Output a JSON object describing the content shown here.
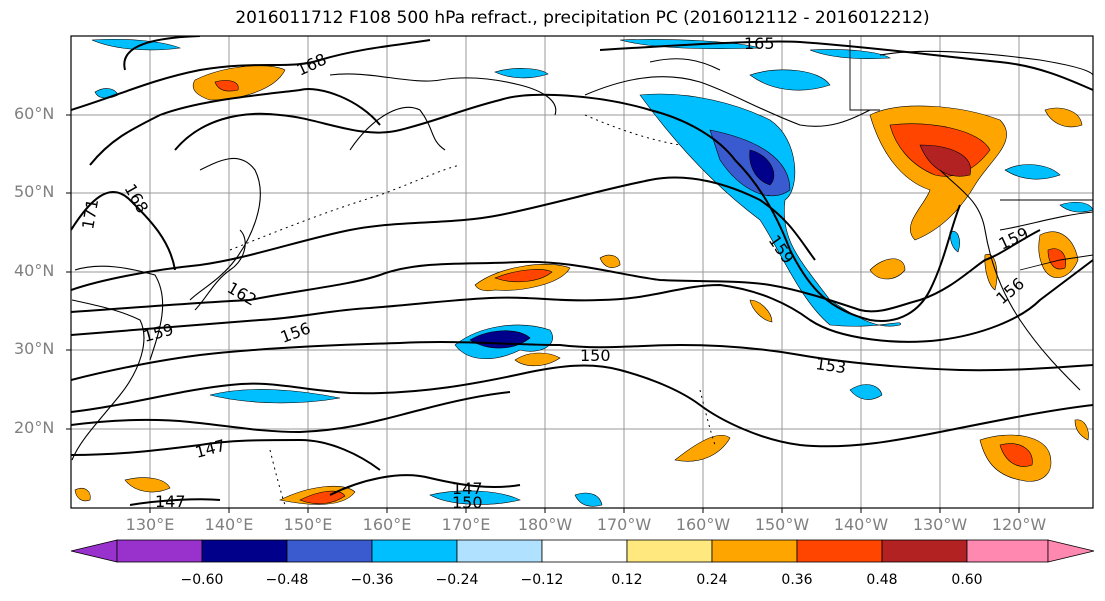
{
  "title": "2016011712 F108 500 hPa refract., precipitation PC (2016012112 - 2016012212)",
  "lat_labels": [
    "60°N",
    "50°N",
    "40°N",
    "30°N",
    "20°N"
  ],
  "lon_labels": [
    "130°E",
    "140°E",
    "150°E",
    "160°E",
    "170°E",
    "180°W",
    "170°W",
    "160°W",
    "150°W",
    "140°W",
    "130°W",
    "120°W"
  ],
  "contour_labels": [
    "165",
    "168",
    "168",
    "171",
    "162",
    "159",
    "159",
    "156",
    "156",
    "153",
    "150",
    "147",
    "147",
    "147",
    "150",
    "159"
  ],
  "colorbar": {
    "ticks": [
      "−0.60",
      "−0.48",
      "−0.36",
      "−0.24",
      "−0.12",
      "0.12",
      "0.24",
      "0.36",
      "0.48",
      "0.60"
    ],
    "colors": [
      "#9932cc",
      "#00008b",
      "#3a5bd0",
      "#00bfff",
      "#b0e2ff",
      "#ffffff",
      "#ffe97f",
      "#ffa500",
      "#ff4500",
      "#b22222",
      "#ff88b0"
    ]
  },
  "colors": {
    "frame": "#000000",
    "grid": "#999999",
    "coast": "#000000"
  }
}
